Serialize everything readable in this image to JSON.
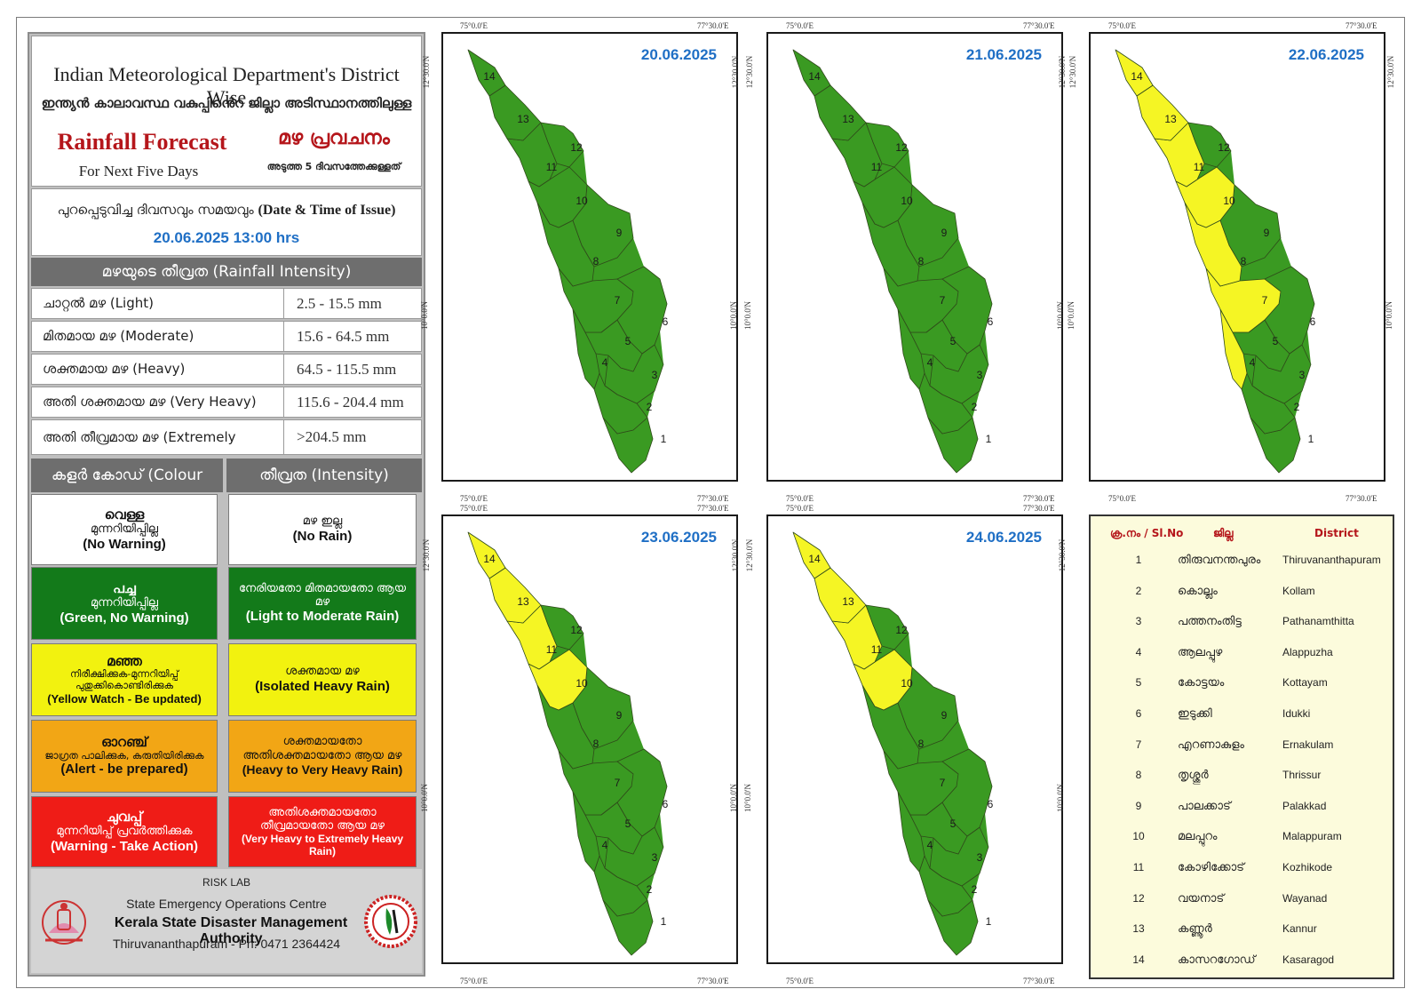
{
  "header": {
    "line1": "Indian Meteorological Department's District Wise",
    "line2": "ഇന്ത്യൻ കാലാവസ്ഥ വകുപ്പിൻെറ ജില്ലാ അടിസ്ഥാനത്തിലുള്ള",
    "forecast_en": "Rainfall Forecast",
    "forecast_ml": "മഴ പ്രവചനം",
    "next_en": "For Next Five Days",
    "next_ml": "അടുത്ത 5 ദിവസത്തേക്കുള്ളത്"
  },
  "issue": {
    "label_ml": "പുറപ്പെടുവിച്ച ദിവസവും സമയവും",
    "label_en": "(Date & Time of Issue)",
    "datetime": "20.06.2025   13:00 hrs"
  },
  "intensity": {
    "heading": "മഴയുടെ തീവ്രത (Rainfall Intensity)",
    "rows": [
      {
        "name": "ചാറ്റൽ മഴ (Light)",
        "range": "2.5 - 15.5 mm"
      },
      {
        "name": "മിതമായ മഴ (Moderate)",
        "range": "15.6 - 64.5 mm"
      },
      {
        "name": "ശക്തമായ മഴ (Heavy)",
        "range": "64.5 - 115.5 mm"
      },
      {
        "name": "അതി ശക്തമായ  മഴ  (Very Heavy)",
        "range": "115.6 - 204.4 mm"
      },
      {
        "name": "അതി തീവ്രമായ മഴ (Extremely Heavy)",
        "range": ">204.5 mm"
      }
    ]
  },
  "colour_code": {
    "head_left": "കളർ കോഡ് (Colour Code)",
    "head_right": "തീവ്രത (Intensity)",
    "rows": [
      {
        "color": "white",
        "hex": "#ffffff",
        "code_l1": "വെള്ള",
        "code_l2": "മുന്നറിയിപ്പില്ല",
        "code_l3": "(No Warning)",
        "int_l1": "മഴ ഇല്ല",
        "int_l2": "(No Rain)"
      },
      {
        "color": "green",
        "hex": "#137a1a",
        "code_l1": "പച്ച",
        "code_l2": "മുന്നറിയിപ്പില്ല",
        "code_l3": "(Green, No Warning)",
        "int_l1": "നേരിയതോ മിതമായതോ ആയ മഴ",
        "int_l2": "(Light to Moderate Rain)"
      },
      {
        "color": "yellow",
        "hex": "#f2f20f",
        "code_l1": "മഞ്ഞ",
        "code_l2": "നിരീക്ഷിക്കുക-മുന്നറിയിപ്പ് പുതുക്കികൊണ്ടിരിക്കുക",
        "code_l3": "(Yellow Watch - Be updated)",
        "int_l1": "ശക്തമായ  മഴ",
        "int_l2": "(Isolated Heavy Rain)"
      },
      {
        "color": "orange",
        "hex": "#f2a615",
        "code_l1": "ഓറഞ്ച്",
        "code_l2": "ജാഗ്രത  പാലിക്കുക, കരുതിയിരിക്കുക",
        "code_l3": "(Alert - be prepared)",
        "int_l1": "ശക്തമായതോ അതിശക്തമായതോ ആയ മഴ",
        "int_l2": "(Heavy to Very Heavy Rain)"
      },
      {
        "color": "red",
        "hex": "#ef1c17",
        "code_l1": "ചുവപ്പ്",
        "code_l2": "മുന്നറിയിപ്പ് പ്രവർത്തിക്കുക",
        "code_l3": "(Warning - Take Action)",
        "int_l1": "അതിശക്തമായതോ തീവ്രമായതോ ആയ മഴ",
        "int_l2": "(Very Heavy to Extremely Heavy Rain)"
      }
    ]
  },
  "footer": {
    "risk_lab": "RISK LAB",
    "seoc": "State Emergency Operations Centre",
    "ksdma": "Kerala State Disaster Management Authority",
    "address": "Thiruvananthapuram - Ph: 0471 2364424"
  },
  "map_coords": {
    "lon_left": "75°0.0'E",
    "lon_right": "77°30.0'E",
    "lat_top": "12°30.0'N",
    "lat_mid": "10°0.0'N"
  },
  "colors": {
    "green": "#3a9a22",
    "yellow": "#f5f524",
    "accent_blue": "#1f6fc5",
    "accent_red": "#b5161b"
  },
  "maps": [
    {
      "date": "20.06.2025",
      "yellow_districts": []
    },
    {
      "date": "21.06.2025",
      "yellow_districts": []
    },
    {
      "date": "22.06.2025",
      "yellow_districts": [
        4,
        7,
        8,
        10,
        11,
        13,
        14
      ]
    },
    {
      "date": "23.06.2025",
      "yellow_districts": [
        10,
        11,
        13,
        14
      ]
    },
    {
      "date": "24.06.2025",
      "yellow_districts": [
        10,
        11,
        13,
        14
      ]
    }
  ],
  "district_legend": {
    "head_no": "ക്ര.നം / Sl.No",
    "head_ml": "ജില്ല",
    "head_en": "District",
    "rows": [
      {
        "no": "1",
        "ml": "തിരുവനന്തപുരം",
        "en": "Thiruvananthapuram"
      },
      {
        "no": "2",
        "ml": "കൊല്ലം",
        "en": "Kollam"
      },
      {
        "no": "3",
        "ml": "പത്തനംതിട്ട",
        "en": "Pathanamthitta"
      },
      {
        "no": "4",
        "ml": "ആലപ്പുഴ",
        "en": "Alappuzha"
      },
      {
        "no": "5",
        "ml": "കോട്ടയം",
        "en": "Kottayam"
      },
      {
        "no": "6",
        "ml": "ഇടുക്കി",
        "en": "Idukki"
      },
      {
        "no": "7",
        "ml": "എറണാകുളം",
        "en": "Ernakulam"
      },
      {
        "no": "8",
        "ml": "തൃശ്ശൂർ",
        "en": "Thrissur"
      },
      {
        "no": "9",
        "ml": "പാലക്കാട്",
        "en": "Palakkad"
      },
      {
        "no": "10",
        "ml": "മലപ്പുറം",
        "en": "Malappuram"
      },
      {
        "no": "11",
        "ml": "കോഴിക്കോട്",
        "en": "Kozhikode"
      },
      {
        "no": "12",
        "ml": "വയനാട്",
        "en": "Wayanad"
      },
      {
        "no": "13",
        "ml": "കണ്ണൂർ",
        "en": "Kannur"
      },
      {
        "no": "14",
        "ml": "കാസറഗോഡ്",
        "en": "Kasaragod"
      }
    ]
  }
}
